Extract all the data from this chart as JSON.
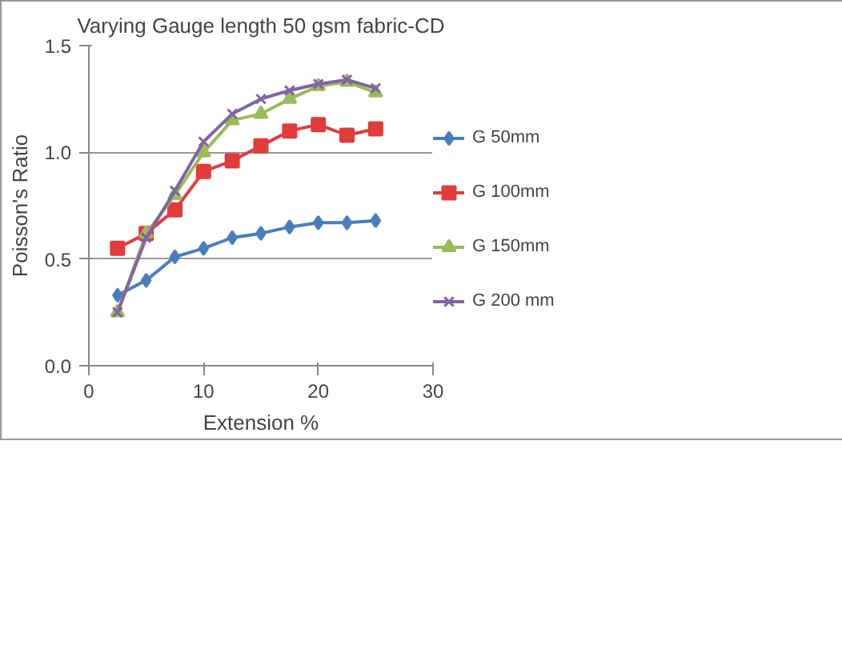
{
  "chart_data": {
    "type": "line",
    "title": "Varying Gauge length 50 gsm fabric-CD",
    "xlabel": "Extension %",
    "ylabel": "Poisson's Ratio",
    "x": [
      2.5,
      5,
      7.5,
      10,
      12.5,
      15,
      17.5,
      20,
      22.5,
      25
    ],
    "xlim": [
      0,
      30
    ],
    "xticks": [
      0,
      10,
      20,
      30
    ],
    "ylim": [
      0,
      1.5
    ],
    "yticks": [
      {
        "value": 0,
        "label": "0.0"
      },
      {
        "value": 0.5,
        "label": "0.5"
      },
      {
        "value": 1,
        "label": "1.0"
      },
      {
        "value": 1.5,
        "label": "1.5"
      }
    ],
    "grid": "y",
    "legend": "right",
    "series": [
      {
        "name": "G 50mm",
        "color": "#4a7ebb",
        "marker": "diamond",
        "values": [
          0.33,
          0.4,
          0.51,
          0.55,
          0.6,
          0.62,
          0.65,
          0.67,
          0.67,
          0.68
        ]
      },
      {
        "name": "G 100mm",
        "color": "#e03c3c",
        "marker": "square",
        "values": [
          0.55,
          0.62,
          0.73,
          0.91,
          0.96,
          1.03,
          1.1,
          1.13,
          1.08,
          1.11
        ]
      },
      {
        "name": "G 150mm",
        "color": "#9bbb59",
        "marker": "triangle",
        "values": [
          0.25,
          0.62,
          0.8,
          1.0,
          1.15,
          1.18,
          1.25,
          1.31,
          1.33,
          1.28
        ]
      },
      {
        "name": "G 200 mm",
        "color": "#8064a2",
        "marker": "cross",
        "values": [
          0.25,
          0.6,
          0.82,
          1.05,
          1.18,
          1.25,
          1.29,
          1.32,
          1.34,
          1.3
        ]
      }
    ]
  }
}
